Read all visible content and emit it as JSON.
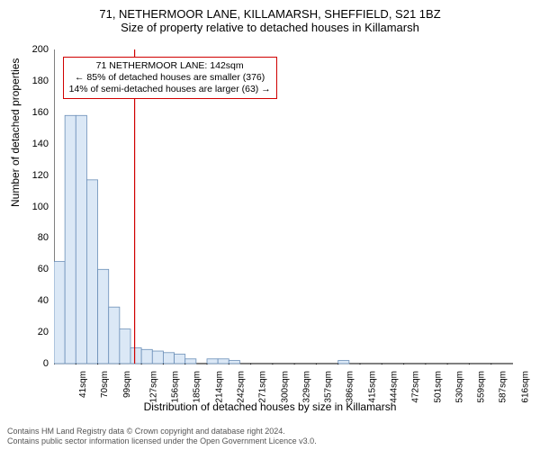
{
  "title": {
    "line1": "71, NETHERMOOR LANE, KILLAMARSH, SHEFFIELD, S21 1BZ",
    "line2": "Size of property relative to detached houses in Killamarsh"
  },
  "chart": {
    "type": "bar",
    "ylabel": "Number of detached properties",
    "xlabel": "Distribution of detached houses by size in Killamarsh",
    "ylim": [
      0,
      200
    ],
    "ytick_step": 20,
    "yticks": [
      0,
      20,
      40,
      60,
      80,
      100,
      120,
      140,
      160,
      180,
      200
    ],
    "xticks": [
      "41sqm",
      "70sqm",
      "99sqm",
      "127sqm",
      "156sqm",
      "185sqm",
      "214sqm",
      "242sqm",
      "271sqm",
      "300sqm",
      "329sqm",
      "357sqm",
      "386sqm",
      "415sqm",
      "444sqm",
      "472sqm",
      "501sqm",
      "530sqm",
      "559sqm",
      "587sqm",
      "616sqm"
    ],
    "bars": [
      65,
      158,
      158,
      117,
      60,
      36,
      22,
      10,
      9,
      8,
      7,
      6,
      3,
      0,
      3,
      3,
      2,
      0,
      0,
      0,
      0,
      0,
      0,
      0,
      0,
      0,
      2,
      0,
      0,
      0,
      0,
      0,
      0,
      0,
      0,
      0,
      0,
      0,
      0,
      0,
      0,
      0
    ],
    "bar_color": "#dbe8f6",
    "bar_border": "#6b8fb8",
    "axis_color": "#000000",
    "grid_color": "#000000",
    "tick_len": 5,
    "marker_line_color": "#d00000",
    "marker_x_value": 142,
    "x_data_min": 41,
    "x_data_max": 616,
    "annotation": {
      "line1": "71 NETHERMOOR LANE: 142sqm",
      "line2": "← 85% of detached houses are smaller (376)",
      "line3": "14% of semi-detached houses are larger (63) →"
    },
    "background_color": "#ffffff",
    "label_fontsize": 12,
    "tick_fontsize": 11
  },
  "footer": {
    "line1": "Contains HM Land Registry data © Crown copyright and database right 2024.",
    "line2": "Contains public sector information licensed under the Open Government Licence v3.0."
  }
}
